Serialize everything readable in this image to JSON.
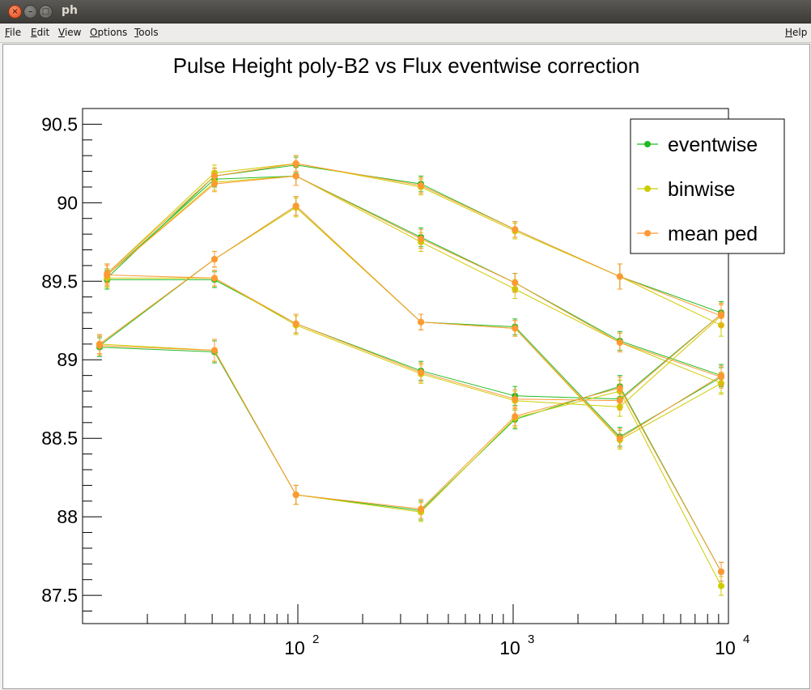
{
  "window": {
    "title": "ph",
    "buttons": {
      "close": "×",
      "minimize": "–",
      "maximize": "□"
    }
  },
  "menubar": {
    "items": [
      "File",
      "Edit",
      "View",
      "Options",
      "Tools"
    ],
    "help": "Help"
  },
  "chart_data": {
    "type": "line",
    "title": "Pulse Height poly-B2 vs Flux eventwise correction",
    "xlabel": "",
    "ylabel": "",
    "x_scale": "log",
    "xlim": [
      10,
      10000
    ],
    "ylim": [
      87.32,
      90.6
    ],
    "y_ticks": [
      87.5,
      88,
      88.5,
      89,
      89.5,
      90,
      90.5
    ],
    "y_tick_labels": [
      "87.5",
      "88",
      "88.5",
      "89",
      "89.5",
      "90",
      "90.5"
    ],
    "x_ticks": [
      100,
      1000,
      10000
    ],
    "x_tick_labels": [
      {
        "base": "10",
        "exp": "2"
      },
      {
        "base": "10",
        "exp": "3"
      },
      {
        "base": "10",
        "exp": "4"
      }
    ],
    "grid": false,
    "error_bars": true,
    "legend_position": "top-right",
    "series": [
      {
        "name": "eventwise",
        "color": "#22bb22",
        "curves": [
          {
            "x": [
              13,
              41,
              98,
              373,
              1020,
              3130,
              9250
            ],
            "y": [
              89.52,
              90.17,
              90.24,
              90.12,
              89.83,
              89.53,
              89.3
            ],
            "err": [
              0.06,
              0.05,
              0.05,
              0.05,
              0.05,
              0.08,
              0.07
            ]
          },
          {
            "x": [
              13,
              41,
              98,
              373,
              1020,
              3130,
              9250
            ],
            "y": [
              89.51,
              89.51,
              89.23,
              88.93,
              88.77,
              88.75,
              89.29
            ],
            "err": [
              0.06,
              0.05,
              0.06,
              0.06,
              0.06,
              0.06,
              0.07
            ]
          },
          {
            "x": [
              12,
              41,
              98,
              373,
              1020,
              3130,
              9250
            ],
            "y": [
              89.09,
              89.64,
              89.98,
              89.24,
              89.21,
              88.51,
              88.89
            ],
            "err": [
              0.06,
              0.05,
              0.06,
              0.05,
              0.05,
              0.06,
              0.06
            ]
          },
          {
            "x": [
              12,
              41,
              98,
              373,
              1020,
              3130,
              9250
            ],
            "y": [
              89.08,
              89.05,
              88.14,
              88.04,
              88.62,
              88.83,
              87.65
            ],
            "err": [
              0.06,
              0.07,
              0.06,
              0.06,
              0.06,
              0.07,
              0.06
            ]
          },
          {
            "x": [
              13,
              41,
              98,
              373,
              1020,
              3130,
              9250
            ],
            "y": [
              89.54,
              90.15,
              90.17,
              89.78,
              89.49,
              89.12,
              88.9
            ],
            "err": [
              0.07,
              0.05,
              0.06,
              0.06,
              0.06,
              0.06,
              0.07
            ]
          }
        ]
      },
      {
        "name": "binwise",
        "color": "#cccc00",
        "curves": [
          {
            "x": [
              13,
              41,
              98,
              373,
              1020,
              3130,
              9250
            ],
            "y": [
              89.55,
              90.19,
              90.25,
              90.1,
              89.82,
              89.53,
              89.22
            ],
            "err": [
              0.06,
              0.05,
              0.05,
              0.05,
              0.05,
              0.08,
              0.07
            ]
          },
          {
            "x": [
              13,
              41,
              98,
              373,
              1020,
              3130,
              9250
            ],
            "y": [
              89.52,
              89.52,
              89.22,
              88.91,
              88.74,
              88.7,
              89.28
            ],
            "err": [
              0.06,
              0.05,
              0.06,
              0.06,
              0.06,
              0.06,
              0.07
            ]
          },
          {
            "x": [
              12,
              41,
              98,
              373,
              1020,
              3130,
              9250
            ],
            "y": [
              89.1,
              89.64,
              89.97,
              89.24,
              89.2,
              88.49,
              88.85
            ],
            "err": [
              0.06,
              0.05,
              0.06,
              0.05,
              0.05,
              0.06,
              0.06
            ]
          },
          {
            "x": [
              12,
              41,
              98,
              373,
              1020,
              3130,
              9250
            ],
            "y": [
              89.1,
              89.06,
              88.14,
              88.03,
              88.63,
              88.8,
              87.56
            ],
            "err": [
              0.06,
              0.07,
              0.06,
              0.06,
              0.06,
              0.07,
              0.06
            ]
          },
          {
            "x": [
              13,
              41,
              98,
              373,
              1020,
              3130,
              9250
            ],
            "y": [
              89.54,
              90.13,
              90.17,
              89.75,
              89.45,
              89.11,
              88.85
            ],
            "err": [
              0.07,
              0.05,
              0.06,
              0.06,
              0.06,
              0.06,
              0.07
            ]
          }
        ]
      },
      {
        "name": "mean ped",
        "color": "#ff9933",
        "curves": [
          {
            "x": [
              13,
              41,
              98,
              373,
              1020,
              3130,
              9250
            ],
            "y": [
              89.55,
              90.17,
              90.25,
              90.11,
              89.83,
              89.53,
              89.28
            ],
            "err": [
              0.06,
              0.05,
              0.05,
              0.05,
              0.05,
              0.08,
              0.07
            ]
          },
          {
            "x": [
              13,
              41,
              98,
              373,
              1020,
              3130,
              9250
            ],
            "y": [
              89.54,
              89.52,
              89.23,
              88.92,
              88.75,
              88.74,
              89.29
            ],
            "err": [
              0.06,
              0.05,
              0.06,
              0.06,
              0.06,
              0.06,
              0.07
            ]
          },
          {
            "x": [
              12,
              41,
              98,
              373,
              1020,
              3130,
              9250
            ],
            "y": [
              89.1,
              89.64,
              89.98,
              89.24,
              89.2,
              88.5,
              88.9
            ],
            "err": [
              0.06,
              0.05,
              0.06,
              0.05,
              0.05,
              0.06,
              0.06
            ]
          },
          {
            "x": [
              12,
              41,
              98,
              373,
              1020,
              3130,
              9250
            ],
            "y": [
              89.09,
              89.06,
              88.14,
              88.05,
              88.64,
              88.82,
              87.65
            ],
            "err": [
              0.06,
              0.07,
              0.06,
              0.06,
              0.06,
              0.07,
              0.06
            ]
          },
          {
            "x": [
              13,
              41,
              98,
              373,
              1020,
              3130,
              9250
            ],
            "y": [
              89.54,
              90.12,
              90.17,
              89.77,
              89.49,
              89.11,
              88.89
            ],
            "err": [
              0.07,
              0.05,
              0.06,
              0.06,
              0.06,
              0.06,
              0.07
            ]
          }
        ]
      }
    ]
  }
}
